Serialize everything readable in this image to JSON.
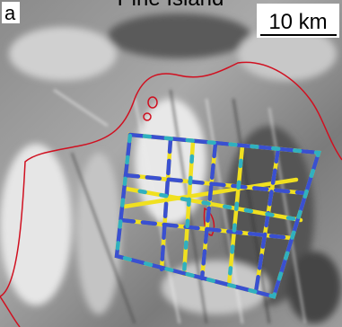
{
  "title": "Pine Island",
  "panel_label": "a",
  "scale_bar": "10 km"
}
